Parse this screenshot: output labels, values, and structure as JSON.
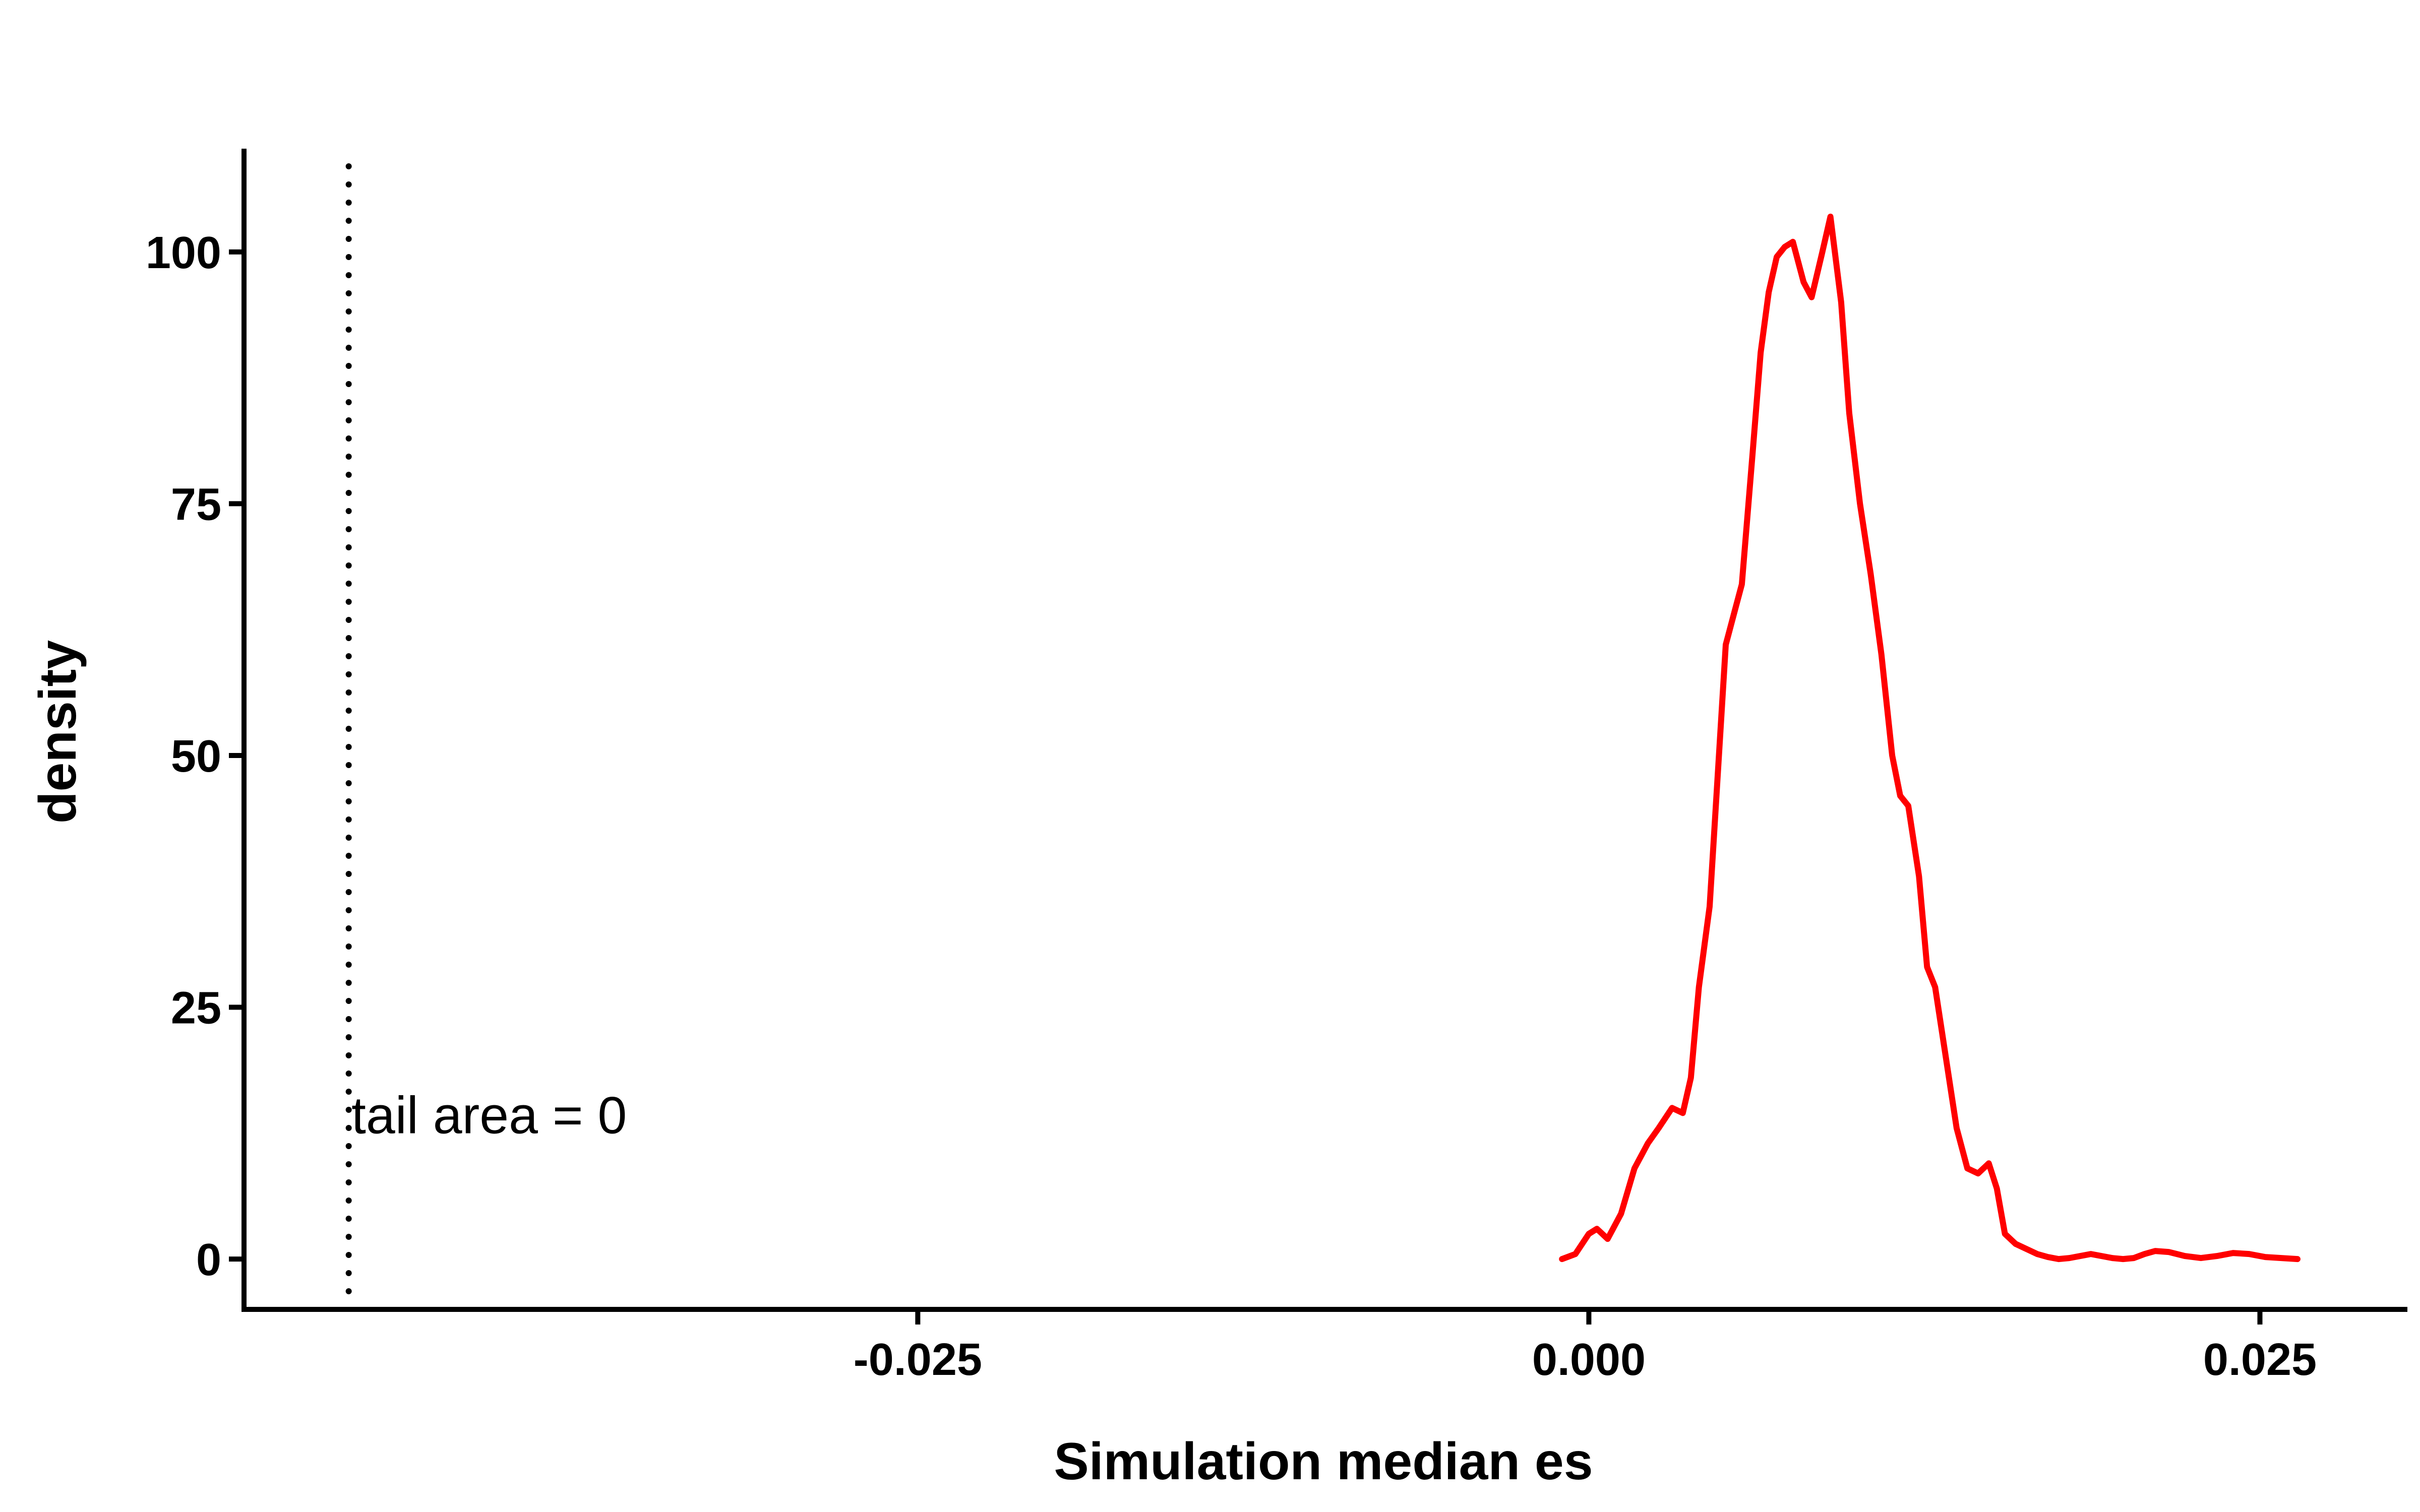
{
  "chart_data": {
    "type": "line",
    "title": "",
    "xlabel": "Simulation median es",
    "ylabel": "density",
    "xlim": [
      -0.0501,
      0.0304
    ],
    "ylim": [
      -5,
      110
    ],
    "x_ticks": [
      {
        "value": -0.025,
        "label": "-0.025"
      },
      {
        "value": 0.0,
        "label": "0.000"
      },
      {
        "value": 0.025,
        "label": "0.025"
      }
    ],
    "y_ticks": [
      {
        "value": 0,
        "label": "0"
      },
      {
        "value": 25,
        "label": "25"
      },
      {
        "value": 50,
        "label": "50"
      },
      {
        "value": 75,
        "label": "75"
      },
      {
        "value": 100,
        "label": "100"
      }
    ],
    "grid": false,
    "legend": "none",
    "reference_line": {
      "x": -0.0462,
      "style": "dotted",
      "color": "#000000"
    },
    "annotation": {
      "text": "tail area =  0",
      "x": -0.0461,
      "y": 12
    },
    "series": [
      {
        "color": "#ff0000",
        "x": [
          -0.001,
          -0.0005,
          0.0,
          0.0003,
          0.0007,
          0.0012,
          0.0017,
          0.0022,
          0.0026,
          0.0031,
          0.0035,
          0.0038,
          0.0041,
          0.0045,
          0.0048,
          0.0051,
          0.0054,
          0.0057,
          0.0061,
          0.0064,
          0.0067,
          0.007,
          0.0073,
          0.0076,
          0.008,
          0.0083,
          0.0087,
          0.009,
          0.0094,
          0.0097,
          0.0101,
          0.0105,
          0.0109,
          0.0113,
          0.0116,
          0.0119,
          0.0123,
          0.0126,
          0.0129,
          0.0133,
          0.0137,
          0.0141,
          0.0145,
          0.0149,
          0.0152,
          0.0155,
          0.0159,
          0.0163,
          0.0167,
          0.0171,
          0.0175,
          0.0179,
          0.0183,
          0.0187,
          0.0191,
          0.0195,
          0.0199,
          0.0203,
          0.0207,
          0.0211,
          0.0216,
          0.0222,
          0.0228,
          0.0234,
          0.024,
          0.0246,
          0.0252,
          0.0258,
          0.0264
        ],
        "y": [
          0,
          0.5,
          2.5,
          3,
          2,
          4.5,
          9,
          11.5,
          13,
          15,
          14.5,
          18,
          27,
          35,
          48,
          61,
          64,
          67,
          80,
          90,
          96,
          99.5,
          100.5,
          101,
          97,
          95.5,
          100,
          103.5,
          95,
          84,
          75,
          68,
          60,
          50,
          46,
          45,
          38,
          29,
          27,
          20,
          13,
          9,
          8.5,
          9.5,
          7,
          2.5,
          1.5,
          1,
          0.5,
          0.2,
          0,
          0.1,
          0.3,
          0.5,
          0.3,
          0.1,
          0,
          0.1,
          0.5,
          0.8,
          0.7,
          0.3,
          0.1,
          0.3,
          0.6,
          0.5,
          0.2,
          0.1,
          0
        ]
      }
    ]
  }
}
